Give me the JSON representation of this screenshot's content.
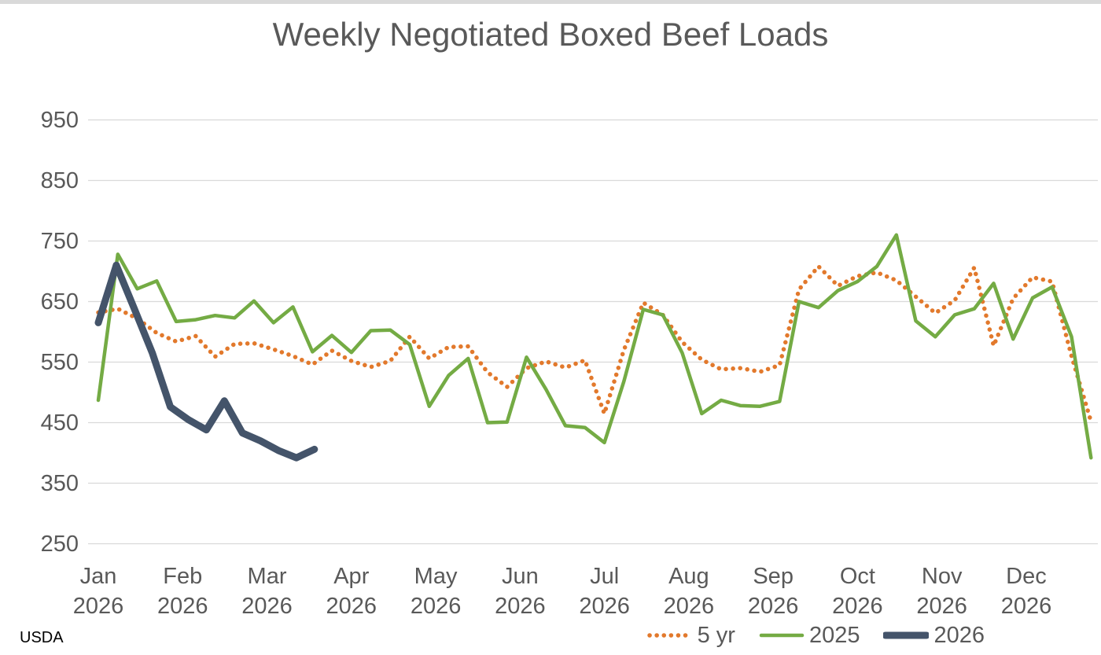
{
  "page": {
    "source": "USDA"
  },
  "chart_data": {
    "type": "line",
    "title": "Weekly Negotiated Boxed Beef Loads",
    "xlabel": "",
    "ylabel": "",
    "x_unit": "week",
    "grid": "horizontal",
    "legend_position": "bottom-right",
    "x_axis": {
      "tick_labels": [
        {
          "month": "Jan",
          "year": "2026"
        },
        {
          "month": "Feb",
          "year": "2026"
        },
        {
          "month": "Mar",
          "year": "2026"
        },
        {
          "month": "Apr",
          "year": "2026"
        },
        {
          "month": "May",
          "year": "2026"
        },
        {
          "month": "Jun",
          "year": "2026"
        },
        {
          "month": "Jul",
          "year": "2026"
        },
        {
          "month": "Aug",
          "year": "2026"
        },
        {
          "month": "Sep",
          "year": "2026"
        },
        {
          "month": "Oct",
          "year": "2026"
        },
        {
          "month": "Nov",
          "year": "2026"
        },
        {
          "month": "Dec",
          "year": "2026"
        }
      ]
    },
    "y_axis": {
      "ticks": [
        950,
        850,
        750,
        650,
        550,
        450,
        350,
        250
      ],
      "min": 250,
      "max": 950
    },
    "series": [
      {
        "name": "5 yr",
        "color": "#E2792C",
        "style": "dotted",
        "values": [
          632,
          638,
          622,
          598,
          584,
          593,
          559,
          580,
          581,
          571,
          560,
          546,
          569,
          552,
          542,
          552,
          592,
          556,
          575,
          576,
          533,
          509,
          540,
          551,
          541,
          553,
          465,
          570,
          648,
          628,
          583,
          554,
          538,
          540,
          534,
          545,
          670,
          708,
          676,
          692,
          698,
          685,
          658,
          631,
          652,
          706,
          577,
          655,
          690,
          683,
          560,
          452
        ]
      },
      {
        "name": "2025",
        "color": "#74AB44",
        "style": "solid",
        "values": [
          487,
          728,
          671,
          684,
          617,
          620,
          627,
          623,
          651,
          615,
          641,
          567,
          594,
          566,
          602,
          603,
          579,
          477,
          528,
          556,
          450,
          451,
          558,
          505,
          445,
          442,
          417,
          518,
          637,
          628,
          565,
          465,
          487,
          478,
          477,
          485,
          650,
          640,
          668,
          683,
          708,
          760,
          618,
          592,
          628,
          638,
          680,
          588,
          656,
          674,
          592,
          392
        ]
      },
      {
        "name": "2026",
        "color": "#44546A",
        "style": "solid-thick",
        "values": [
          615,
          710,
          638,
          565,
          476,
          455,
          438,
          486,
          433,
          420,
          404,
          392,
          406
        ]
      }
    ],
    "colors": {
      "text": "#595959",
      "gridline": "#D9D9D9",
      "source_text": "#000000"
    }
  }
}
